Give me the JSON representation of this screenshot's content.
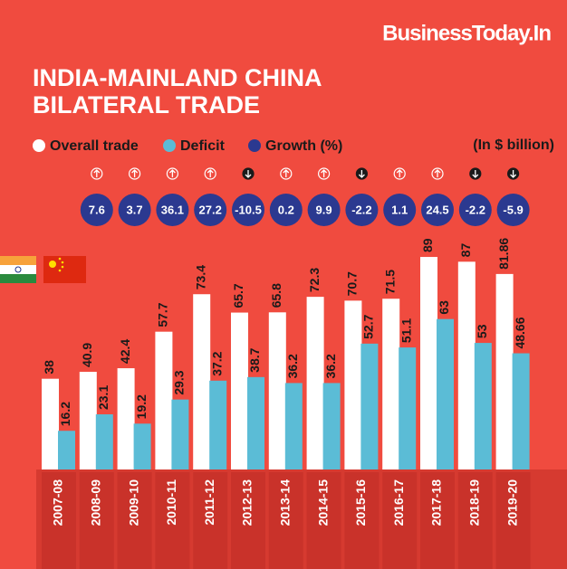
{
  "chart_data": {
    "type": "bar",
    "brand": "BusinessToday.In",
    "title": [
      "INDIA-MAINLAND CHINA",
      "BILATERAL TRADE"
    ],
    "unit_note": "(In $ billion)",
    "categories": [
      "2007-08",
      "2008-09",
      "2009-10",
      "2010-11",
      "2011-12",
      "2012-13",
      "2013-14",
      "2014-15",
      "2015-16",
      "2016-17",
      "2017-18",
      "2018-19",
      "2019-20"
    ],
    "series": [
      {
        "name": "Overall trade",
        "color": "#ffffff",
        "values": [
          38,
          40.9,
          42.4,
          57.7,
          73.4,
          65.7,
          65.8,
          72.3,
          70.7,
          71.5,
          89,
          87,
          81.86
        ]
      },
      {
        "name": "Deficit",
        "color": "#5bbcd6",
        "values": [
          16.2,
          23.1,
          19.2,
          29.3,
          37.2,
          38.7,
          36.2,
          36.2,
          52.7,
          51.1,
          63,
          53,
          48.66
        ]
      },
      {
        "name": "Growth (%)",
        "color": "#2b3990",
        "values": [
          null,
          7.6,
          3.7,
          36.1,
          27.2,
          -10.5,
          0.2,
          9.9,
          -2.2,
          1.1,
          24.5,
          -2.2,
          -5.9
        ]
      }
    ]
  }
}
